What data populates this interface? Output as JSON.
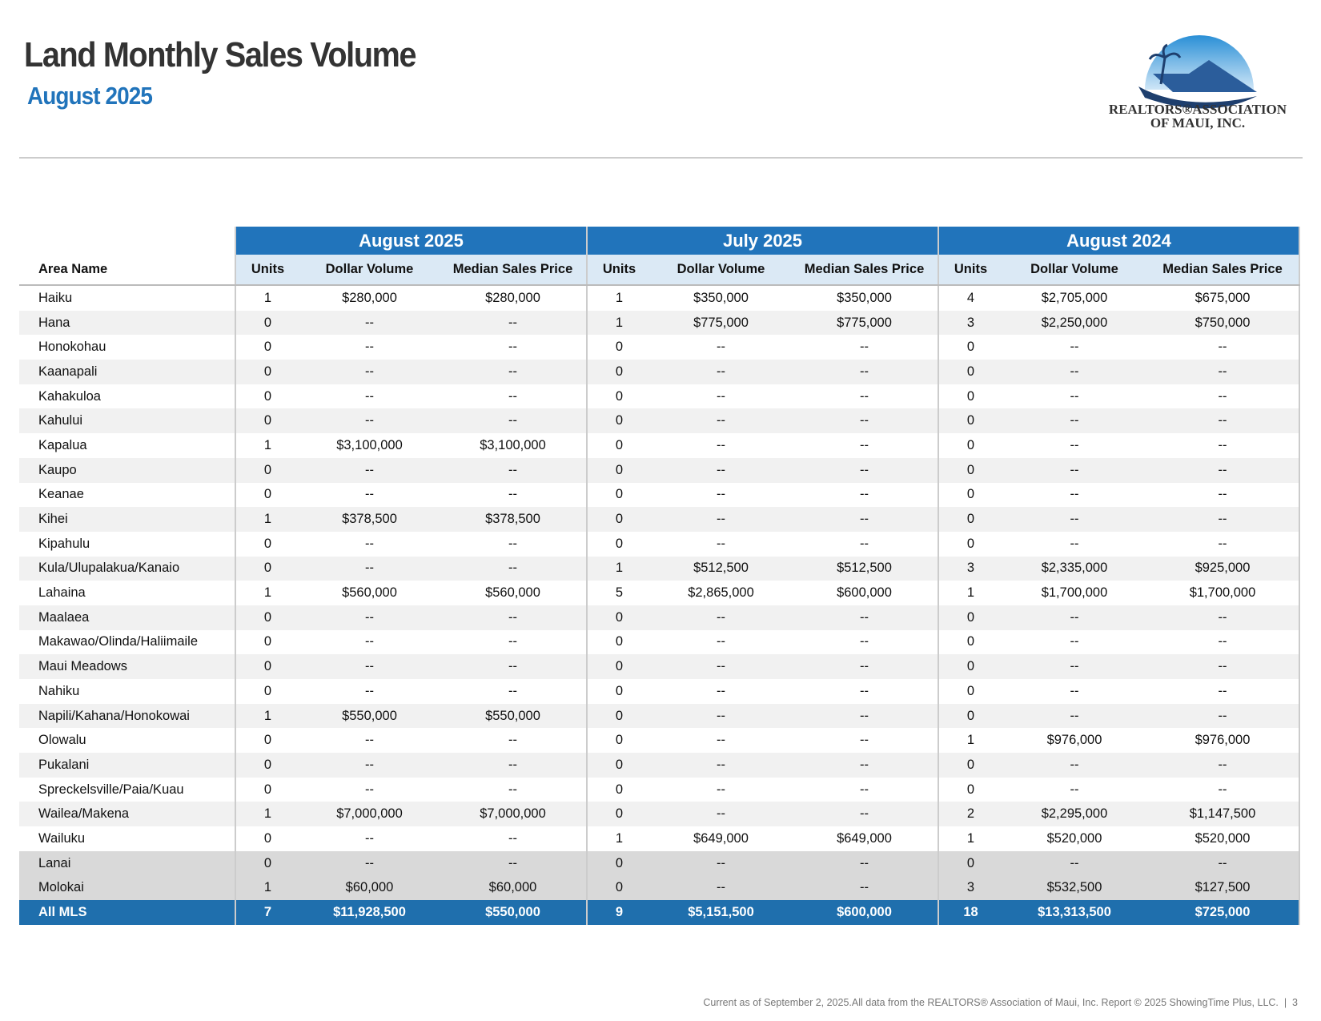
{
  "header": {
    "title": "Land Monthly Sales Volume",
    "subtitle": "August 2025"
  },
  "logo": {
    "line1": "REALTORS®ASSOCIATION",
    "line2": "OF MAUI, INC."
  },
  "table": {
    "area_header": "Area Name",
    "groups": [
      "August 2025",
      "July 2025",
      "August 2024"
    ],
    "columns": [
      "Units",
      "Dollar Volume",
      "Median Sales Price"
    ],
    "rows": [
      [
        "Haiku",
        "1",
        "$280,000",
        "$280,000",
        "1",
        "$350,000",
        "$350,000",
        "4",
        "$2,705,000",
        "$675,000"
      ],
      [
        "Hana",
        "0",
        "--",
        "--",
        "1",
        "$775,000",
        "$775,000",
        "3",
        "$2,250,000",
        "$750,000"
      ],
      [
        "Honokohau",
        "0",
        "--",
        "--",
        "0",
        "--",
        "--",
        "0",
        "--",
        "--"
      ],
      [
        "Kaanapali",
        "0",
        "--",
        "--",
        "0",
        "--",
        "--",
        "0",
        "--",
        "--"
      ],
      [
        "Kahakuloa",
        "0",
        "--",
        "--",
        "0",
        "--",
        "--",
        "0",
        "--",
        "--"
      ],
      [
        "Kahului",
        "0",
        "--",
        "--",
        "0",
        "--",
        "--",
        "0",
        "--",
        "--"
      ],
      [
        "Kapalua",
        "1",
        "$3,100,000",
        "$3,100,000",
        "0",
        "--",
        "--",
        "0",
        "--",
        "--"
      ],
      [
        "Kaupo",
        "0",
        "--",
        "--",
        "0",
        "--",
        "--",
        "0",
        "--",
        "--"
      ],
      [
        "Keanae",
        "0",
        "--",
        "--",
        "0",
        "--",
        "--",
        "0",
        "--",
        "--"
      ],
      [
        "Kihei",
        "1",
        "$378,500",
        "$378,500",
        "0",
        "--",
        "--",
        "0",
        "--",
        "--"
      ],
      [
        "Kipahulu",
        "0",
        "--",
        "--",
        "0",
        "--",
        "--",
        "0",
        "--",
        "--"
      ],
      [
        "Kula/Ulupalakua/Kanaio",
        "0",
        "--",
        "--",
        "1",
        "$512,500",
        "$512,500",
        "3",
        "$2,335,000",
        "$925,000"
      ],
      [
        "Lahaina",
        "1",
        "$560,000",
        "$560,000",
        "5",
        "$2,865,000",
        "$600,000",
        "1",
        "$1,700,000",
        "$1,700,000"
      ],
      [
        "Maalaea",
        "0",
        "--",
        "--",
        "0",
        "--",
        "--",
        "0",
        "--",
        "--"
      ],
      [
        "Makawao/Olinda/Haliimaile",
        "0",
        "--",
        "--",
        "0",
        "--",
        "--",
        "0",
        "--",
        "--"
      ],
      [
        "Maui Meadows",
        "0",
        "--",
        "--",
        "0",
        "--",
        "--",
        "0",
        "--",
        "--"
      ],
      [
        "Nahiku",
        "0",
        "--",
        "--",
        "0",
        "--",
        "--",
        "0",
        "--",
        "--"
      ],
      [
        "Napili/Kahana/Honokowai",
        "1",
        "$550,000",
        "$550,000",
        "0",
        "--",
        "--",
        "0",
        "--",
        "--"
      ],
      [
        "Olowalu",
        "0",
        "--",
        "--",
        "0",
        "--",
        "--",
        "1",
        "$976,000",
        "$976,000"
      ],
      [
        "Pukalani",
        "0",
        "--",
        "--",
        "0",
        "--",
        "--",
        "0",
        "--",
        "--"
      ],
      [
        "Spreckelsville/Paia/Kuau",
        "0",
        "--",
        "--",
        "0",
        "--",
        "--",
        "0",
        "--",
        "--"
      ],
      [
        "Wailea/Makena",
        "1",
        "$7,000,000",
        "$7,000,000",
        "0",
        "--",
        "--",
        "2",
        "$2,295,000",
        "$1,147,500"
      ],
      [
        "Wailuku",
        "0",
        "--",
        "--",
        "1",
        "$649,000",
        "$649,000",
        "1",
        "$520,000",
        "$520,000"
      ]
    ],
    "island_rows": [
      [
        "Lanai",
        "0",
        "--",
        "--",
        "0",
        "--",
        "--",
        "0",
        "--",
        "--"
      ],
      [
        "Molokai",
        "1",
        "$60,000",
        "$60,000",
        "0",
        "--",
        "--",
        "3",
        "$532,500",
        "$127,500"
      ]
    ],
    "total": [
      "All MLS",
      "7",
      "$11,928,500",
      "$550,000",
      "9",
      "$5,151,500",
      "$600,000",
      "18",
      "$13,313,500",
      "$725,000"
    ]
  },
  "footer": "Current as of September 2, 2025.All data from the REALTORS® Association of Maui, Inc. Report © 2025 ShowingTime Plus, LLC.  |  3"
}
